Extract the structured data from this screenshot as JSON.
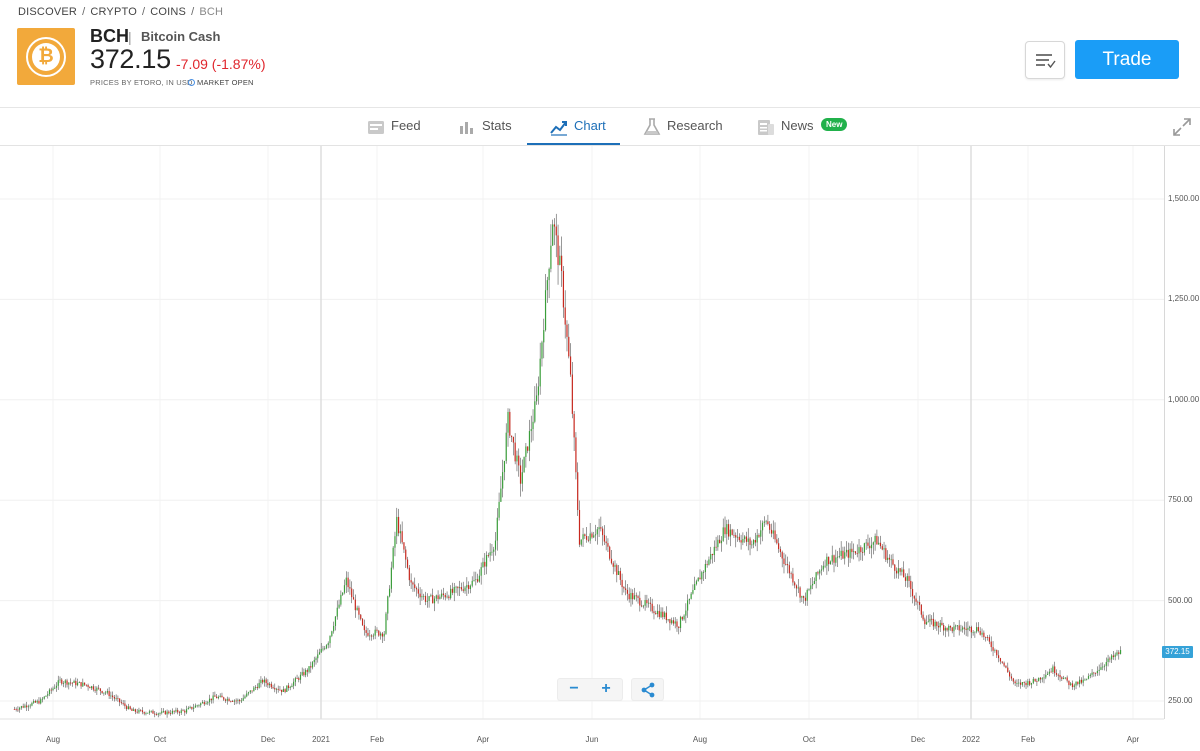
{
  "breadcrumb": [
    {
      "label": "DISCOVER"
    },
    {
      "label": "CRYPTO"
    },
    {
      "label": "COINS"
    },
    {
      "label": "BCH"
    }
  ],
  "breadcrumb_separator": "/",
  "instrument": {
    "symbol": "BCH",
    "separator": "|",
    "name": "Bitcoin Cash",
    "price": "372.15",
    "change": "-7.09 (-1.87%)",
    "price_note": "PRICES BY ETORO, IN USD",
    "market_status": "MARKET OPEN",
    "logo_glyph": "₿",
    "logo_icon": "bitcoin-cash-logo",
    "brand_color": "#f2a93b",
    "change_color": "#e0262d"
  },
  "actions": {
    "trade_label": "Trade",
    "watchlist_icon": "list-check-icon"
  },
  "tabs": [
    {
      "label": "Feed",
      "icon": "feed-icon",
      "active": false
    },
    {
      "label": "Stats",
      "icon": "bar-chart-icon",
      "active": false
    },
    {
      "label": "Chart",
      "icon": "line-chart-icon",
      "active": true
    },
    {
      "label": "Research",
      "icon": "flask-icon",
      "active": false
    },
    {
      "label": "News",
      "icon": "news-icon",
      "active": false,
      "badge": "New"
    }
  ],
  "chart_controls": {
    "zoom_out": "−",
    "zoom_in": "+",
    "share_icon": "share-icon"
  },
  "chart_data": {
    "type": "candlestick",
    "y_ticks": [
      "1,500.00",
      "1,250.00",
      "1,000.00",
      "750.00",
      "500.00",
      "250.00"
    ],
    "y_tick_values": [
      1500,
      1250,
      1000,
      750,
      500,
      250
    ],
    "x_ticks": [
      "Aug",
      "Oct",
      "Dec",
      "2021",
      "Feb",
      "Apr",
      "Jun",
      "Aug",
      "Oct",
      "Dec",
      "2022",
      "Feb",
      "Apr"
    ],
    "last_price_label": "372.15",
    "last_price": 372.15,
    "ylim": [
      200,
      1620
    ],
    "x_range": [
      "2020-07",
      "2022-03"
    ],
    "grid": true,
    "up_color": "#3a9e3a",
    "down_color": "#c8281e",
    "series": [
      {
        "x": "2020-07-10",
        "y": 230
      },
      {
        "x": "2020-07-25",
        "y": 250
      },
      {
        "x": "2020-08-05",
        "y": 300
      },
      {
        "x": "2020-08-20",
        "y": 290
      },
      {
        "x": "2020-09-01",
        "y": 270
      },
      {
        "x": "2020-09-15",
        "y": 225
      },
      {
        "x": "2020-10-01",
        "y": 220
      },
      {
        "x": "2020-10-15",
        "y": 225
      },
      {
        "x": "2020-11-01",
        "y": 260
      },
      {
        "x": "2020-11-15",
        "y": 250
      },
      {
        "x": "2020-11-28",
        "y": 300
      },
      {
        "x": "2020-12-10",
        "y": 275
      },
      {
        "x": "2020-12-25",
        "y": 330
      },
      {
        "x": "2021-01-05",
        "y": 400
      },
      {
        "x": "2021-01-15",
        "y": 550
      },
      {
        "x": "2021-01-25",
        "y": 420
      },
      {
        "x": "2021-02-05",
        "y": 420
      },
      {
        "x": "2021-02-12",
        "y": 700
      },
      {
        "x": "2021-02-20",
        "y": 540
      },
      {
        "x": "2021-03-01",
        "y": 500
      },
      {
        "x": "2021-03-15",
        "y": 520
      },
      {
        "x": "2021-03-28",
        "y": 550
      },
      {
        "x": "2021-04-08",
        "y": 650
      },
      {
        "x": "2021-04-15",
        "y": 950
      },
      {
        "x": "2021-04-22",
        "y": 800
      },
      {
        "x": "2021-05-01",
        "y": 1000
      },
      {
        "x": "2021-05-10",
        "y": 1450
      },
      {
        "x": "2021-05-15",
        "y": 1300
      },
      {
        "x": "2021-05-20",
        "y": 1050
      },
      {
        "x": "2021-05-25",
        "y": 650
      },
      {
        "x": "2021-06-05",
        "y": 680
      },
      {
        "x": "2021-06-20",
        "y": 520
      },
      {
        "x": "2021-07-05",
        "y": 480
      },
      {
        "x": "2021-07-20",
        "y": 440
      },
      {
        "x": "2021-08-01",
        "y": 560
      },
      {
        "x": "2021-08-15",
        "y": 680
      },
      {
        "x": "2021-08-30",
        "y": 640
      },
      {
        "x": "2021-09-07",
        "y": 700
      },
      {
        "x": "2021-09-15",
        "y": 620
      },
      {
        "x": "2021-09-28",
        "y": 500
      },
      {
        "x": "2021-10-10",
        "y": 600
      },
      {
        "x": "2021-10-25",
        "y": 620
      },
      {
        "x": "2021-11-08",
        "y": 650
      },
      {
        "x": "2021-11-15",
        "y": 600
      },
      {
        "x": "2021-11-25",
        "y": 550
      },
      {
        "x": "2021-12-05",
        "y": 450
      },
      {
        "x": "2021-12-20",
        "y": 430
      },
      {
        "x": "2022-01-05",
        "y": 430
      },
      {
        "x": "2022-01-15",
        "y": 370
      },
      {
        "x": "2022-01-25",
        "y": 290
      },
      {
        "x": "2022-02-05",
        "y": 300
      },
      {
        "x": "2022-02-15",
        "y": 330
      },
      {
        "x": "2022-02-25",
        "y": 290
      },
      {
        "x": "2022-03-05",
        "y": 300
      },
      {
        "x": "2022-03-15",
        "y": 340
      },
      {
        "x": "2022-03-25",
        "y": 372.15
      }
    ]
  }
}
